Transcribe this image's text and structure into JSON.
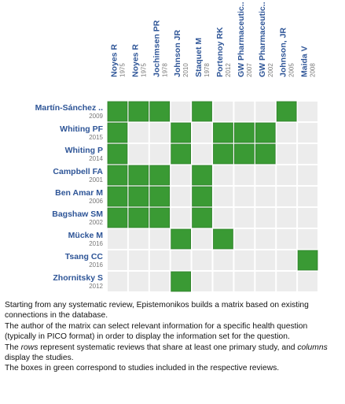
{
  "columns": [
    {
      "name": "Noyes R",
      "year": "1975"
    },
    {
      "name": "Noyes R",
      "year": "1975"
    },
    {
      "name": "Jochimsen PR",
      "year": "1978"
    },
    {
      "name": "Johnson JR",
      "year": "2010"
    },
    {
      "name": "Staquet M",
      "year": "1978"
    },
    {
      "name": "Portenoy RK",
      "year": "2012"
    },
    {
      "name": "GW Pharmaceutic..",
      "year": "2007"
    },
    {
      "name": "GW Pharmaceutic..",
      "year": "2002"
    },
    {
      "name": "Johnson, JR",
      "year": "2005"
    },
    {
      "name": "Maida V",
      "year": "2008"
    }
  ],
  "rows": [
    {
      "name": "Martín-Sánchez ..",
      "year": "2009",
      "included": [
        true,
        true,
        true,
        false,
        true,
        false,
        false,
        false,
        true,
        false
      ]
    },
    {
      "name": "Whiting PF",
      "year": "2015",
      "included": [
        true,
        false,
        false,
        true,
        false,
        true,
        true,
        true,
        false,
        false
      ]
    },
    {
      "name": "Whiting P",
      "year": "2014",
      "included": [
        true,
        false,
        false,
        true,
        false,
        true,
        true,
        true,
        false,
        false
      ]
    },
    {
      "name": "Campbell FA",
      "year": "2001",
      "included": [
        true,
        true,
        true,
        false,
        true,
        false,
        false,
        false,
        false,
        false
      ]
    },
    {
      "name": "Ben Amar M",
      "year": "2006",
      "included": [
        true,
        true,
        true,
        false,
        true,
        false,
        false,
        false,
        false,
        false
      ]
    },
    {
      "name": "Bagshaw SM",
      "year": "2002",
      "included": [
        true,
        true,
        true,
        false,
        true,
        false,
        false,
        false,
        false,
        false
      ]
    },
    {
      "name": "Mücke M",
      "year": "2016",
      "included": [
        false,
        false,
        false,
        true,
        false,
        true,
        false,
        false,
        false,
        false
      ]
    },
    {
      "name": "Tsang CC",
      "year": "2016",
      "included": [
        false,
        false,
        false,
        false,
        false,
        false,
        false,
        false,
        false,
        true
      ]
    },
    {
      "name": "Zhornitsky S",
      "year": "2012",
      "included": [
        false,
        false,
        false,
        true,
        false,
        false,
        false,
        false,
        false,
        false
      ]
    }
  ],
  "caption": [
    [
      "Starting from any systematic review, Epistemonikos builds a matrix based on existing connections in the database."
    ],
    [
      "The author of the matrix can select relevant information for a specific health question (typically in PICO format) in order to display the information set for the question."
    ],
    [
      "The ",
      "rows",
      " represent systematic reviews that share at least one primary study, and ",
      "columns",
      " display the studies."
    ],
    [
      "The boxes in green correspond to studies included in the respective reviews."
    ]
  ]
}
